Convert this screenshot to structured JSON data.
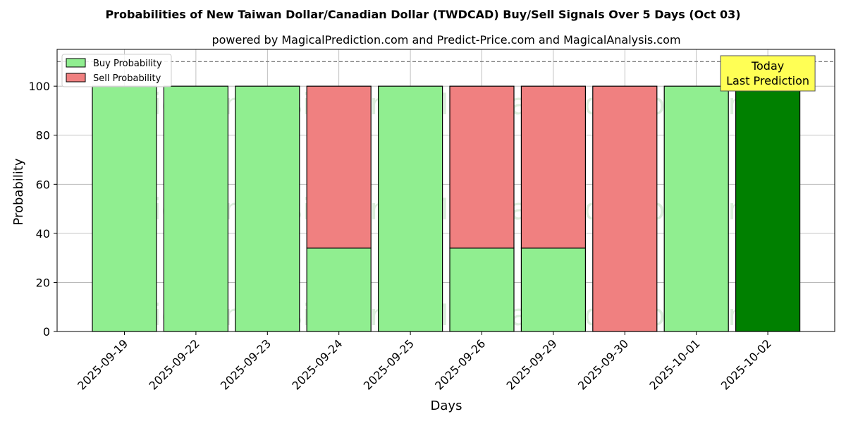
{
  "chart_data": {
    "type": "bar",
    "stacked": true,
    "title": "Probabilities of New Taiwan Dollar/Canadian Dollar (TWDCAD) Buy/Sell Signals Over 5 Days (Oct 03)",
    "subtitle": "powered by MagicalPrediction.com and Predict-Price.com and MagicalAnalysis.com",
    "xlabel": "Days",
    "ylabel": "Probability",
    "ylim": [
      0,
      115
    ],
    "yticks": [
      0,
      20,
      40,
      60,
      80,
      100
    ],
    "grid": true,
    "legend_position": "top-left",
    "categories": [
      "2025-09-19",
      "2025-09-22",
      "2025-09-23",
      "2025-09-24",
      "2025-09-25",
      "2025-09-26",
      "2025-09-29",
      "2025-09-30",
      "2025-10-01",
      "2025-10-02"
    ],
    "series": [
      {
        "name": "Buy Probability",
        "color": "#90ee90",
        "values": [
          100,
          100,
          100,
          34,
          100,
          34,
          34,
          0,
          100,
          100
        ]
      },
      {
        "name": "Sell Probability",
        "color": "#f08080",
        "values": [
          0,
          0,
          0,
          66,
          0,
          66,
          66,
          100,
          0,
          0
        ]
      }
    ],
    "highlight": {
      "index": 9,
      "color": "#008000"
    },
    "reference_line": {
      "y": 110,
      "style": "dashed",
      "color": "#808080"
    },
    "annotation": {
      "lines": [
        "Today",
        "Last Prediction"
      ],
      "background": "#ffff55"
    },
    "watermarks": [
      "MagicalAnalysis.com",
      "MagicalPrediction.com"
    ]
  }
}
